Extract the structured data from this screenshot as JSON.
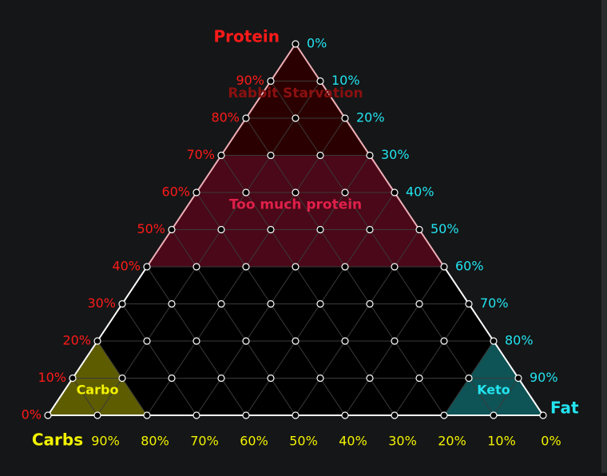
{
  "chart_data": {
    "type": "ternary",
    "axes": {
      "protein": {
        "label": "Protein",
        "color": "#ff1a1a",
        "ticks": [
          "0%",
          "10%",
          "20%",
          "30%",
          "40%",
          "50%",
          "60%",
          "70%",
          "80%",
          "90%"
        ]
      },
      "fat": {
        "label": "Fat",
        "color": "#22e4f0",
        "ticks": [
          "0%",
          "10%",
          "20%",
          "30%",
          "40%",
          "50%",
          "60%",
          "70%",
          "80%",
          "90%"
        ]
      },
      "carbs": {
        "label": "Carbs",
        "color": "#f2f200",
        "ticks": [
          "90%",
          "80%",
          "70%",
          "60%",
          "50%",
          "40%",
          "30%",
          "20%",
          "10%",
          "0%"
        ]
      }
    },
    "regions": [
      {
        "name": "Rabbit Starvation",
        "protein_range": [
          70,
          100
        ],
        "fill": "#2b0000",
        "text_color": "#8a1010"
      },
      {
        "name": "Too much protein",
        "protein_range": [
          40,
          70
        ],
        "fill": "#4a0818",
        "text_color": "#e0204a"
      },
      {
        "name": "Carbo",
        "corner": "carbs",
        "min_percent": 80,
        "fill": "#5e5c00",
        "text_color": "#f2f200"
      },
      {
        "name": "Keto",
        "corner": "fat",
        "min_percent": 80,
        "fill": "#0e5356",
        "text_color": "#22e4f0"
      }
    ],
    "grid_step_percent": 10,
    "colors": {
      "background": "#151617",
      "triangle_fill": "#000000",
      "outline": "#ffffff",
      "grid": "#3a3a3a"
    }
  }
}
